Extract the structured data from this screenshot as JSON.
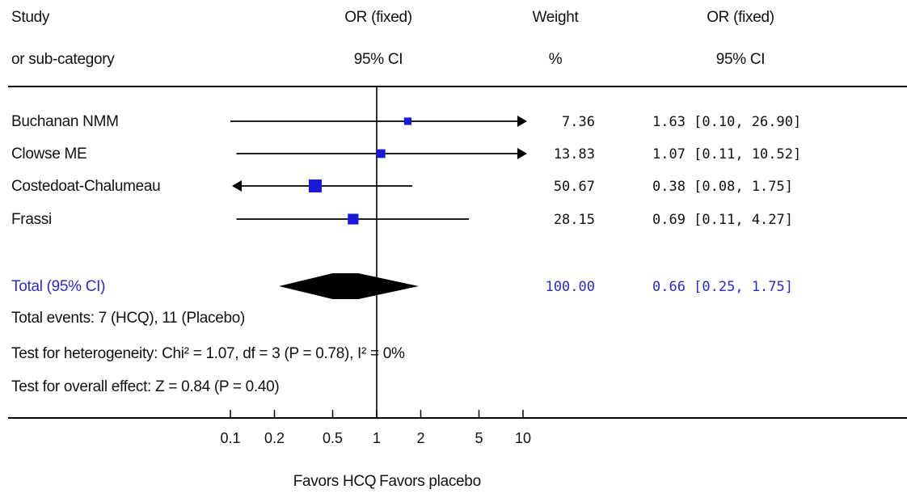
{
  "header": {
    "study_l1": "Study",
    "study_l2": "or sub-category",
    "or_l1": "OR (fixed)",
    "or_l2": "95% CI",
    "weight_l1": "Weight",
    "weight_l2": "%",
    "orv_l1": "OR (fixed)",
    "orv_l2": "95% CI"
  },
  "chart_data": {
    "type": "forest",
    "x_scale": "log",
    "xlim": [
      0.1,
      10
    ],
    "x_ticks": [
      "0.1",
      "0.2",
      "0.5",
      "1",
      "2",
      "5",
      "10"
    ],
    "x_tick_values": [
      0.1,
      0.2,
      0.5,
      1,
      2,
      5,
      10
    ],
    "null_value": 1,
    "studies": [
      {
        "name": "Buchanan NMM",
        "or": 1.63,
        "lower": 0.1,
        "upper": 26.9,
        "weight": "7.36",
        "ci_text": "1.63 [0.10, 26.90]"
      },
      {
        "name": "Clowse ME",
        "or": 1.07,
        "lower": 0.11,
        "upper": 10.52,
        "weight": "13.83",
        "ci_text": "1.07 [0.11, 10.52]"
      },
      {
        "name": "Costedoat-Chalumeau",
        "or": 0.38,
        "lower": 0.08,
        "upper": 1.75,
        "weight": "50.67",
        "ci_text": "0.38 [0.08, 1.75]"
      },
      {
        "name": "Frassi",
        "or": 0.69,
        "lower": 0.11,
        "upper": 4.27,
        "weight": "28.15",
        "ci_text": "0.69 [0.11, 4.27]"
      }
    ],
    "total": {
      "name": "Total (95% CI)",
      "or": 0.66,
      "lower": 0.25,
      "upper": 1.75,
      "weight": "100.00",
      "ci_text": "0.66 [0.25, 1.75]"
    },
    "footnotes": [
      "Total events: 7 (HCQ), 11 (Placebo)",
      "Test for heterogeneity: Chi² = 1.07, df = 3 (P = 0.78), I² = 0%",
      "Test for overall effect: Z = 0.84 (P = 0.40)"
    ],
    "favors_left": "Favors HCQ",
    "favors_right": "Favors placebo",
    "colors": {
      "marker": "#1a1ad6",
      "total_text": "#2b2bbf",
      "diamond": "#000000",
      "line": "#000000"
    }
  }
}
